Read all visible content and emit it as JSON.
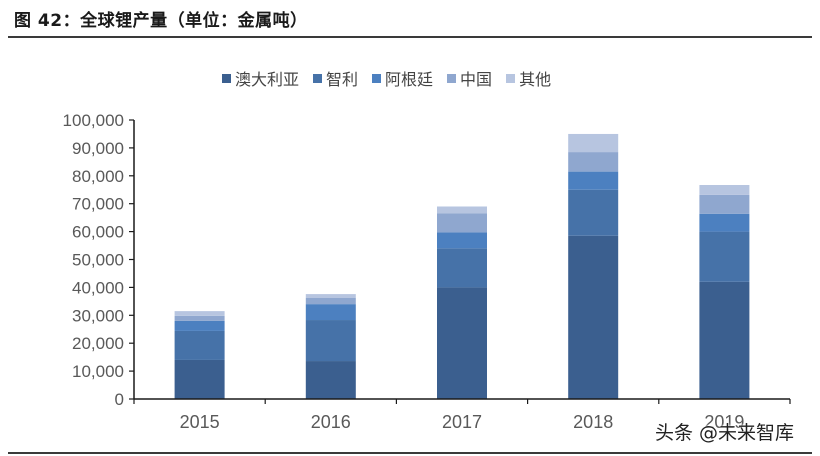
{
  "figure": {
    "title": "图 42：全球锂产量（单位：金属吨）"
  },
  "watermark": "头条 @未来智库",
  "colors": {
    "australia": "#3b5f8f",
    "chile": "#4672a8",
    "argentina": "#4c80c0",
    "china": "#8fa7cf",
    "other": "#b7c5e0",
    "axis": "#1a1a1a",
    "tick_label": "#595959"
  },
  "legend": [
    {
      "label": "澳大利亚",
      "color": "#3b5f8f"
    },
    {
      "label": "智利",
      "color": "#4672a8"
    },
    {
      "label": "阿根廷",
      "color": "#4c80c0"
    },
    {
      "label": "中国",
      "color": "#8fa7cf"
    },
    {
      "label": "其他",
      "color": "#b7c5e0"
    }
  ],
  "chart_data": {
    "type": "bar",
    "stacked": true,
    "title": "全球锂产量（单位：金属吨）",
    "xlabel": "",
    "ylabel": "",
    "categories": [
      "2015",
      "2016",
      "2017",
      "2018",
      "2019"
    ],
    "series": [
      {
        "name": "澳大利亚",
        "values": [
          14000,
          13600,
          40000,
          58500,
          42000
        ]
      },
      {
        "name": "智利",
        "values": [
          10400,
          14700,
          14000,
          16500,
          18000
        ]
      },
      {
        "name": "阿根廷",
        "values": [
          3600,
          5700,
          5700,
          6500,
          6400
        ]
      },
      {
        "name": "中国",
        "values": [
          1800,
          2200,
          6800,
          7000,
          6800
        ]
      },
      {
        "name": "其他",
        "values": [
          1700,
          1400,
          2500,
          6500,
          3500
        ]
      }
    ],
    "totals": [
      31500,
      37600,
      69000,
      95000,
      76700
    ],
    "ylim": [
      0,
      100000
    ],
    "yticks": [
      "0",
      "10,000",
      "20,000",
      "30,000",
      "40,000",
      "50,000",
      "60,000",
      "70,000",
      "80,000",
      "90,000",
      "100,000"
    ],
    "ytick_values": [
      0,
      10000,
      20000,
      30000,
      40000,
      50000,
      60000,
      70000,
      80000,
      90000,
      100000
    ],
    "grid": false,
    "legend_position": "top"
  }
}
